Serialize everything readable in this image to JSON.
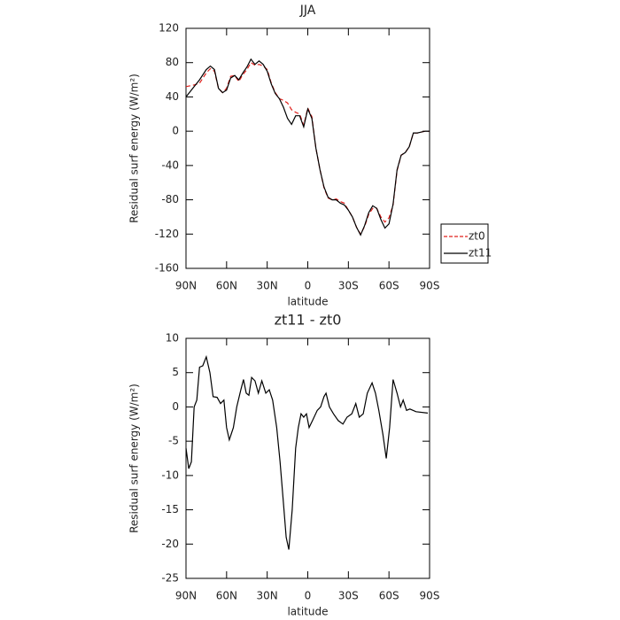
{
  "chart_data": [
    {
      "type": "line",
      "title": "JJA",
      "xlabel": "latitude",
      "ylabel": "Residual surf energy (W/m²)",
      "x": [
        90,
        84,
        80,
        75,
        72,
        69,
        66,
        63,
        60,
        57,
        54,
        51,
        48,
        45,
        42,
        39,
        36,
        33,
        30,
        27,
        24,
        21,
        18,
        15,
        12,
        9,
        6,
        3,
        0,
        -3,
        -6,
        -9,
        -12,
        -15,
        -18,
        -21,
        -24,
        -27,
        -30,
        -33,
        -36,
        -39,
        -42,
        -45,
        -48,
        -51,
        -54,
        -57,
        -60,
        -63,
        -66,
        -69,
        -72,
        -75,
        -78,
        -81,
        -84,
        -87,
        -90
      ],
      "series": [
        {
          "name": "zt0",
          "color": "#e0201c",
          "dash": true,
          "values": [
            52,
            54,
            56,
            68,
            73,
            70,
            50,
            45,
            50,
            64,
            65,
            58,
            66,
            72,
            80,
            77,
            78,
            76,
            72,
            56,
            45,
            38,
            36,
            33,
            25,
            22,
            20,
            7,
            27,
            17,
            -20,
            -45,
            -66,
            -78,
            -80,
            -79,
            -82,
            -84,
            -92,
            -100,
            -112,
            -120,
            -111,
            -97,
            -90,
            -90,
            -100,
            -106,
            -101,
            -86,
            -46,
            -28,
            -25,
            -18,
            -2,
            -2,
            -1,
            0,
            0
          ]
        },
        {
          "name": "zt11",
          "color": "#000000",
          "dash": false,
          "values": [
            40,
            52,
            60,
            72,
            76,
            72,
            50,
            45,
            48,
            62,
            65,
            60,
            68,
            75,
            84,
            78,
            82,
            78,
            70,
            55,
            44,
            38,
            28,
            15,
            8,
            18,
            18,
            5,
            26,
            15,
            -20,
            -45,
            -65,
            -77,
            -80,
            -80,
            -84,
            -86,
            -92,
            -100,
            -112,
            -121,
            -110,
            -95,
            -87,
            -90,
            -103,
            -113,
            -108,
            -85,
            -45,
            -28,
            -25,
            -18,
            -2,
            -2,
            -1,
            0,
            0
          ]
        }
      ],
      "xlim": [
        90,
        -90
      ],
      "xticks": [
        {
          "value": 90,
          "label": "90N"
        },
        {
          "value": 60,
          "label": "60N"
        },
        {
          "value": 30,
          "label": "30N"
        },
        0,
        {
          "value": -30,
          "label": "30S"
        },
        {
          "value": -60,
          "label": "60S"
        },
        {
          "value": -90,
          "label": "90S"
        }
      ],
      "ylim": [
        -160,
        120
      ],
      "yticks": [
        -160,
        -120,
        -80,
        -40,
        0,
        40,
        80,
        120
      ],
      "legend": "right"
    },
    {
      "type": "line",
      "title": "zt11 - zt0",
      "xlabel": "latitude",
      "ylabel": "Residual surf energy (W/m²)",
      "x": [
        90,
        88,
        86,
        84,
        82,
        80,
        77.6,
        75,
        72.3,
        70,
        67,
        64.5,
        62,
        60,
        58,
        55,
        52.5,
        49.5,
        47.5,
        45.5,
        43.5,
        41.5,
        39,
        36.5,
        34,
        31,
        28.5,
        26,
        23,
        20.5,
        18,
        16,
        14,
        11.5,
        9,
        7,
        5,
        3,
        1,
        -1,
        -3.5,
        -7,
        -9.5,
        -12,
        -13.5,
        -16,
        -19,
        -22.5,
        -26,
        -29,
        -32.5,
        -35.5,
        -38,
        -41,
        -44,
        -47.5,
        -50,
        -52.5,
        -55.5,
        -58,
        -60.5,
        -63,
        -66,
        -68.5,
        -70.5,
        -73,
        -75.5,
        -80,
        -88.7
      ],
      "values": [
        -6,
        -9,
        -8,
        0,
        1,
        5.8,
        6,
        7.3,
        5,
        1.5,
        1.4,
        0.5,
        1,
        -3,
        -4.8,
        -3,
        0,
        2.5,
        4,
        2,
        1.7,
        4.3,
        3.8,
        2,
        3.8,
        2,
        2.5,
        1,
        -3,
        -8,
        -14,
        -19,
        -20.8,
        -15,
        -6,
        -3,
        -1,
        -1.5,
        -1,
        -3,
        -2,
        -0.5,
        0,
        1.5,
        2,
        0,
        -1,
        -2,
        -2.5,
        -1.5,
        -1,
        0.5,
        -1.5,
        -1,
        2,
        3.5,
        2,
        -0.5,
        -4,
        -7.5,
        -3,
        4,
        2,
        0,
        1,
        -0.5,
        -0.3,
        -0.7,
        -0.9
      ],
      "color": "#000000",
      "xlim": [
        90,
        -90
      ],
      "xticks": [
        {
          "value": 90,
          "label": "90N"
        },
        {
          "value": 60,
          "label": "60N"
        },
        {
          "value": 30,
          "label": "30N"
        },
        0,
        {
          "value": -30,
          "label": "30S"
        },
        {
          "value": -60,
          "label": "60S"
        },
        {
          "value": -90,
          "label": "90S"
        }
      ],
      "ylim": [
        -25,
        10
      ],
      "yticks": [
        -25,
        -20,
        -15,
        -10,
        -5,
        0,
        5,
        10
      ]
    }
  ]
}
